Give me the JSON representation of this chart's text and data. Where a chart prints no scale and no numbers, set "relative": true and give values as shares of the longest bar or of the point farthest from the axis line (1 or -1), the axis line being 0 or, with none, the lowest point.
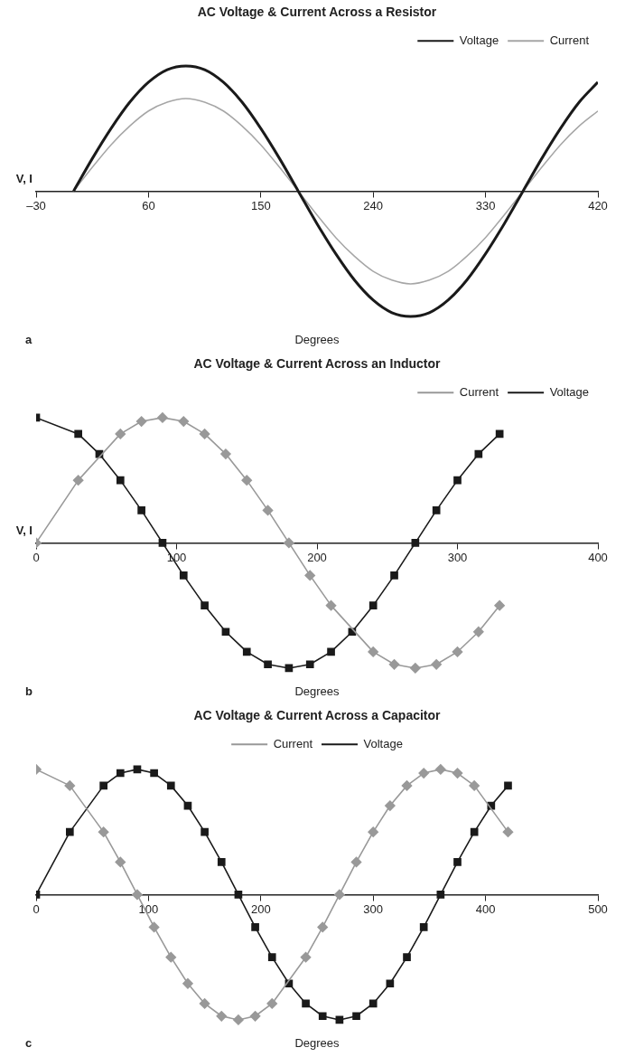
{
  "chart_data": [
    {
      "type": "line",
      "title": "AC Voltage & Current Across a Resistor",
      "xlabel": "Degrees",
      "ylabel": "V, I",
      "relative": true,
      "annotations": [
        "a"
      ],
      "legend": "top right",
      "grid": false,
      "marker": "none",
      "x": [
        0,
        15,
        30,
        45,
        60,
        75,
        90,
        105,
        120,
        135,
        150,
        165,
        180,
        195,
        210,
        225,
        240,
        255,
        270,
        285,
        300,
        315,
        330,
        345,
        360,
        375,
        390,
        405,
        420
      ],
      "xlim": [
        -30,
        420
      ],
      "xticks": [
        {
          "value": -30,
          "label": "–30"
        },
        60,
        150,
        240,
        330,
        420
      ],
      "series": [
        {
          "name": "Voltage",
          "color": "#1a1a1a",
          "values": [
            0,
            0.26,
            0.5,
            0.71,
            0.87,
            0.97,
            1,
            0.97,
            0.87,
            0.71,
            0.5,
            0.26,
            0,
            -0.26,
            -0.5,
            -0.71,
            -0.87,
            -0.97,
            -1,
            -0.97,
            -0.87,
            -0.71,
            -0.5,
            -0.26,
            0,
            0.26,
            0.5,
            0.71,
            0.87
          ]
        },
        {
          "name": "Current",
          "color": "#a6a6a6",
          "values": [
            0,
            0.19,
            0.37,
            0.52,
            0.64,
            0.71,
            0.74,
            0.71,
            0.64,
            0.52,
            0.37,
            0.19,
            0,
            -0.19,
            -0.37,
            -0.52,
            -0.64,
            -0.71,
            -0.74,
            -0.71,
            -0.64,
            -0.52,
            -0.37,
            -0.19,
            0,
            0.19,
            0.37,
            0.52,
            0.64
          ]
        }
      ]
    },
    {
      "type": "line",
      "title": "AC Voltage & Current Across an Inductor",
      "xlabel": "Degrees",
      "ylabel": "V, I",
      "relative": true,
      "annotations": [
        "b"
      ],
      "legend": "top right",
      "grid": false,
      "x": [
        0,
        30,
        45,
        60,
        75,
        90,
        105,
        120,
        135,
        150,
        165,
        180,
        195,
        210,
        225,
        240,
        255,
        270,
        285,
        300,
        315,
        330
      ],
      "xlim": [
        0,
        400
      ],
      "xticks": [
        0,
        100,
        200,
        300,
        400
      ],
      "series": [
        {
          "name": "Current",
          "color": "#999999",
          "marker": "diamond",
          "values": [
            0,
            0.5,
            null,
            0.87,
            0.97,
            1,
            0.97,
            0.87,
            0.71,
            0.5,
            0.26,
            0,
            -0.26,
            -0.5,
            null,
            -0.87,
            -0.97,
            -1,
            -0.97,
            -0.87,
            -0.71,
            -0.5
          ]
        },
        {
          "name": "Voltage",
          "color": "#1a1a1a",
          "marker": "square",
          "values": [
            1,
            0.87,
            0.71,
            0.5,
            0.26,
            0,
            -0.26,
            -0.5,
            -0.71,
            -0.87,
            -0.97,
            -1,
            -0.97,
            -0.87,
            -0.71,
            -0.5,
            -0.26,
            0,
            0.26,
            0.5,
            0.71,
            0.87
          ]
        }
      ]
    },
    {
      "type": "line",
      "title": "AC Voltage & Current Across a Capacitor",
      "xlabel": "Degrees",
      "relative": true,
      "annotations": [
        "c"
      ],
      "legend": "top",
      "grid": false,
      "x": [
        0,
        30,
        60,
        75,
        90,
        105,
        120,
        135,
        150,
        165,
        180,
        195,
        210,
        225,
        240,
        255,
        270,
        285,
        300,
        315,
        330,
        345,
        360,
        375,
        390,
        405,
        420
      ],
      "xlim": [
        0,
        500
      ],
      "xticks": [
        0,
        100,
        200,
        300,
        400,
        500
      ],
      "series": [
        {
          "name": "Current",
          "color": "#999999",
          "marker": "diamond",
          "values": [
            1,
            0.87,
            0.5,
            0.26,
            0,
            -0.26,
            -0.5,
            -0.71,
            -0.87,
            -0.97,
            -1,
            -0.97,
            -0.87,
            null,
            -0.5,
            -0.26,
            0,
            0.26,
            0.5,
            0.71,
            0.87,
            0.97,
            1,
            0.97,
            0.87,
            null,
            0.5
          ]
        },
        {
          "name": "Voltage",
          "color": "#1a1a1a",
          "marker": "square",
          "values": [
            0,
            0.5,
            0.87,
            0.97,
            1,
            0.97,
            0.87,
            0.71,
            0.5,
            0.26,
            0,
            -0.26,
            -0.5,
            -0.71,
            -0.87,
            -0.97,
            -1,
            -0.97,
            -0.87,
            -0.71,
            -0.5,
            -0.26,
            0,
            0.26,
            0.5,
            0.71,
            0.87
          ]
        }
      ]
    }
  ]
}
